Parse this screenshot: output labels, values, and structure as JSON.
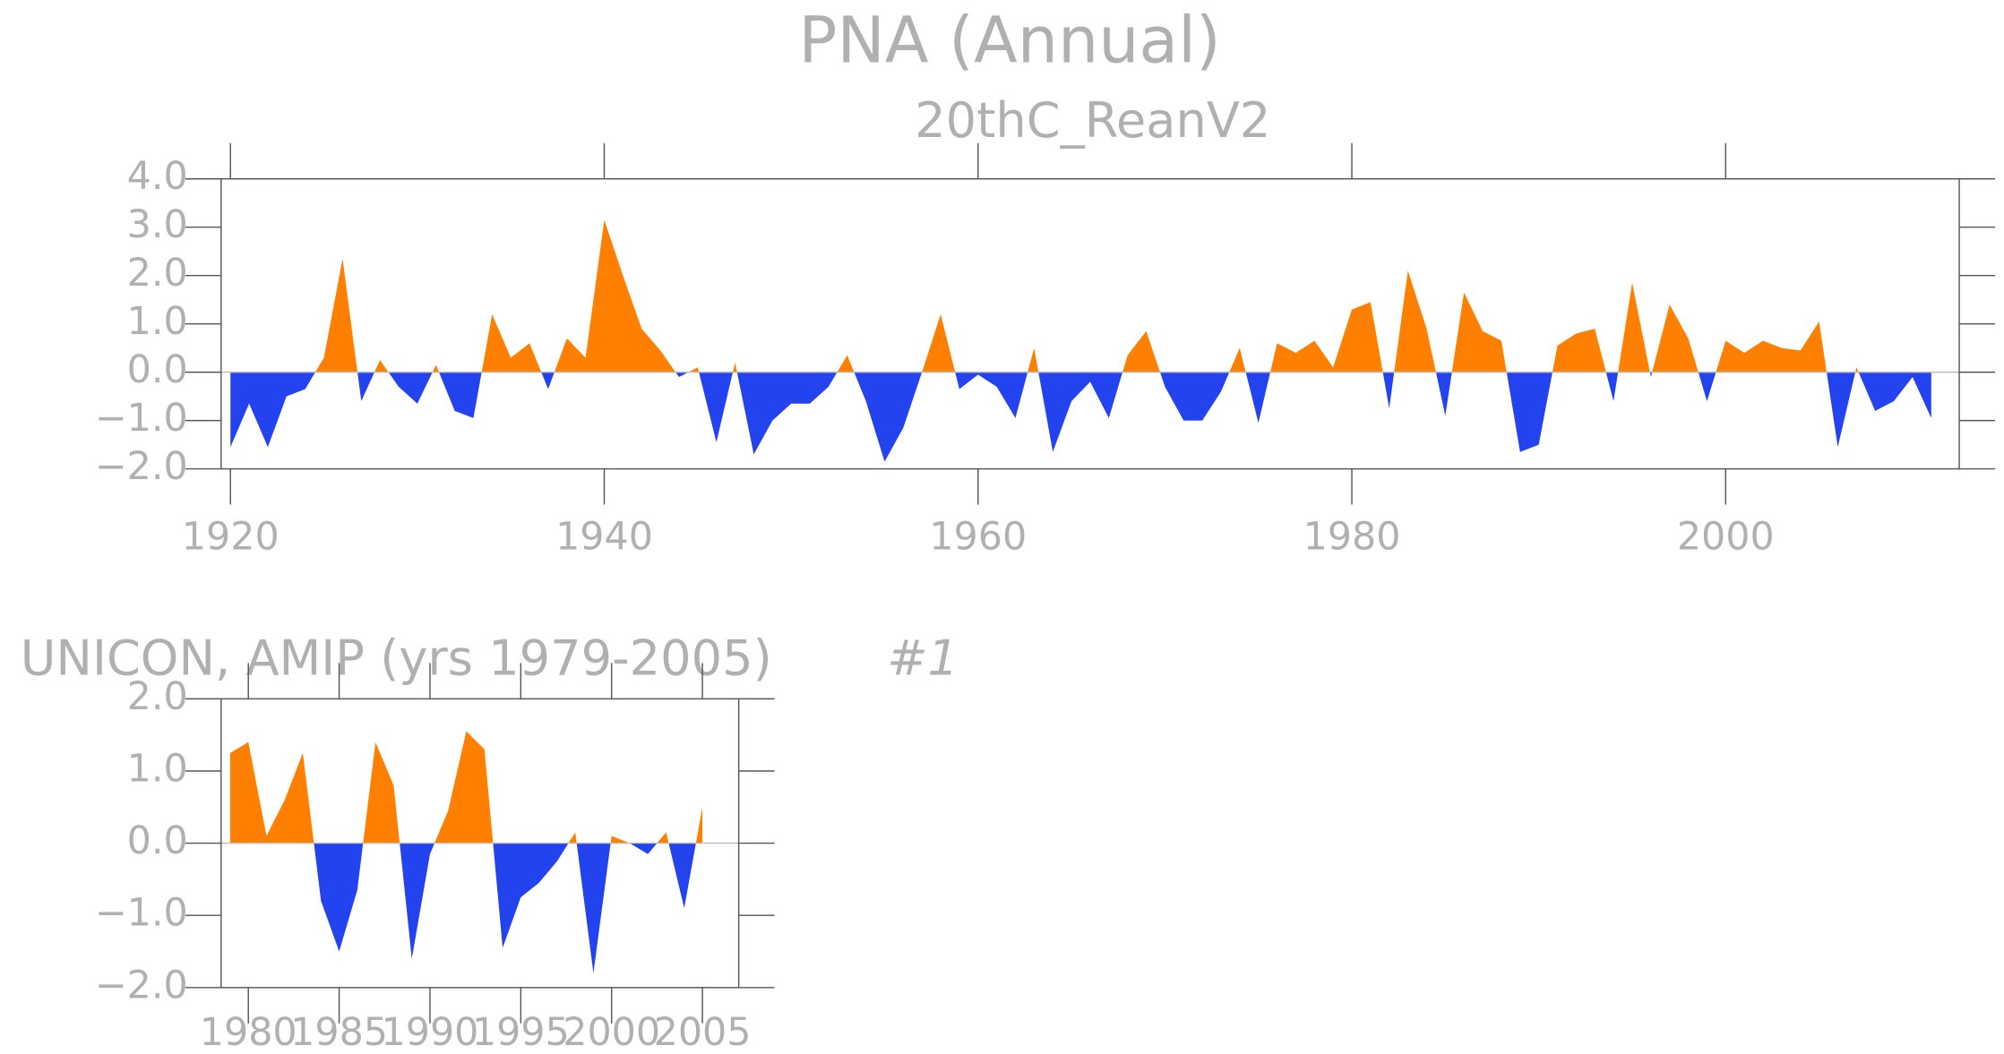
{
  "chart_data": [
    {
      "type": "area",
      "title": "PNA (Annual)",
      "subtitle": "20thC_ReanV2",
      "x": [
        1920,
        1921,
        1922,
        1923,
        1924,
        1925,
        1926,
        1927,
        1928,
        1929,
        1930,
        1931,
        1932,
        1933,
        1934,
        1935,
        1936,
        1937,
        1938,
        1939,
        1940,
        1941,
        1942,
        1943,
        1944,
        1945,
        1946,
        1947,
        1948,
        1949,
        1950,
        1951,
        1952,
        1953,
        1954,
        1955,
        1956,
        1957,
        1958,
        1959,
        1960,
        1961,
        1962,
        1963,
        1964,
        1965,
        1966,
        1967,
        1968,
        1969,
        1970,
        1971,
        1972,
        1973,
        1974,
        1975,
        1976,
        1977,
        1978,
        1979,
        1980,
        1981,
        1982,
        1983,
        1984,
        1985,
        1986,
        1987,
        1988,
        1989,
        1990,
        1991,
        1992,
        1993,
        1994,
        1995,
        1996,
        1997,
        1998,
        1999,
        2000,
        2001,
        2002,
        2003,
        2004,
        2005,
        2006,
        2007,
        2008,
        2009,
        2010,
        2011
      ],
      "values": [
        -1.55,
        -0.65,
        -1.55,
        -0.5,
        -0.35,
        0.3,
        2.35,
        -0.6,
        0.25,
        -0.3,
        -0.65,
        0.15,
        -0.8,
        -0.95,
        1.2,
        0.3,
        0.6,
        -0.35,
        0.7,
        0.3,
        3.15,
        2.0,
        0.9,
        0.45,
        -0.1,
        0.1,
        -1.45,
        0.2,
        -1.7,
        -1.0,
        -0.65,
        -0.65,
        -0.3,
        0.35,
        -0.6,
        -1.85,
        -1.15,
        0.0,
        1.2,
        -0.35,
        -0.05,
        -0.3,
        -0.95,
        0.5,
        -1.65,
        -0.6,
        -0.2,
        -0.95,
        0.35,
        0.85,
        -0.3,
        -1.0,
        -1.0,
        -0.4,
        0.5,
        -1.05,
        0.6,
        0.4,
        0.65,
        0.1,
        1.3,
        1.45,
        -0.75,
        2.1,
        0.9,
        -0.9,
        1.65,
        0.85,
        0.65,
        -1.65,
        -1.5,
        0.55,
        0.8,
        0.9,
        -0.6,
        1.85,
        -0.1,
        1.4,
        0.7,
        -0.6,
        0.65,
        0.4,
        0.65,
        0.5,
        0.45,
        1.05,
        -1.55,
        0.1,
        -0.8,
        -0.6,
        -0.1,
        -0.95
      ],
      "colors": {
        "positive": "#ff8000",
        "negative": "#2343ef"
      },
      "xlim": [
        1919.5,
        2012.5
      ],
      "xticks": [
        1920,
        1940,
        1960,
        1980,
        2000
      ],
      "ylim": [
        -2,
        4
      ],
      "yticks": [
        {
          "value": -2,
          "label": "−2.0"
        },
        {
          "value": -1,
          "label": "−1.0"
        },
        {
          "value": 0,
          "label": "0.0"
        },
        {
          "value": 1,
          "label": "1.0"
        },
        {
          "value": 2,
          "label": "2.0"
        },
        {
          "value": 3,
          "label": "3.0"
        },
        {
          "value": 4,
          "label": "4.0"
        }
      ]
    },
    {
      "type": "area",
      "title": "UNICON, AMIP (yrs 1979-2005)",
      "annotation": "#1",
      "x": [
        1979,
        1980,
        1981,
        1982,
        1983,
        1984,
        1985,
        1986,
        1987,
        1988,
        1989,
        1990,
        1991,
        1992,
        1993,
        1994,
        1995,
        1996,
        1997,
        1998,
        1999,
        2000,
        2001,
        2002,
        2003,
        2004,
        2005
      ],
      "values": [
        1.25,
        1.4,
        0.1,
        0.6,
        1.25,
        -0.8,
        -1.5,
        -0.65,
        1.4,
        0.8,
        -1.6,
        -0.15,
        0.45,
        1.55,
        1.3,
        -1.45,
        -0.75,
        -0.55,
        -0.25,
        0.15,
        -1.8,
        0.1,
        0.0,
        -0.15,
        0.15,
        -0.9,
        0.5
      ],
      "colors": {
        "positive": "#ff8000",
        "negative": "#2343ef"
      },
      "xlim": [
        1978.5,
        2007
      ],
      "xticks": [
        1980,
        1985,
        1990,
        1995,
        2000,
        2005
      ],
      "ylim": [
        -2,
        2
      ],
      "yticks": [
        {
          "value": -2,
          "label": "−2.0"
        },
        {
          "value": -1,
          "label": "−1.0"
        },
        {
          "value": 0,
          "label": "0.0"
        },
        {
          "value": 1,
          "label": "1.0"
        },
        {
          "value": 2,
          "label": "2.0"
        }
      ]
    }
  ]
}
